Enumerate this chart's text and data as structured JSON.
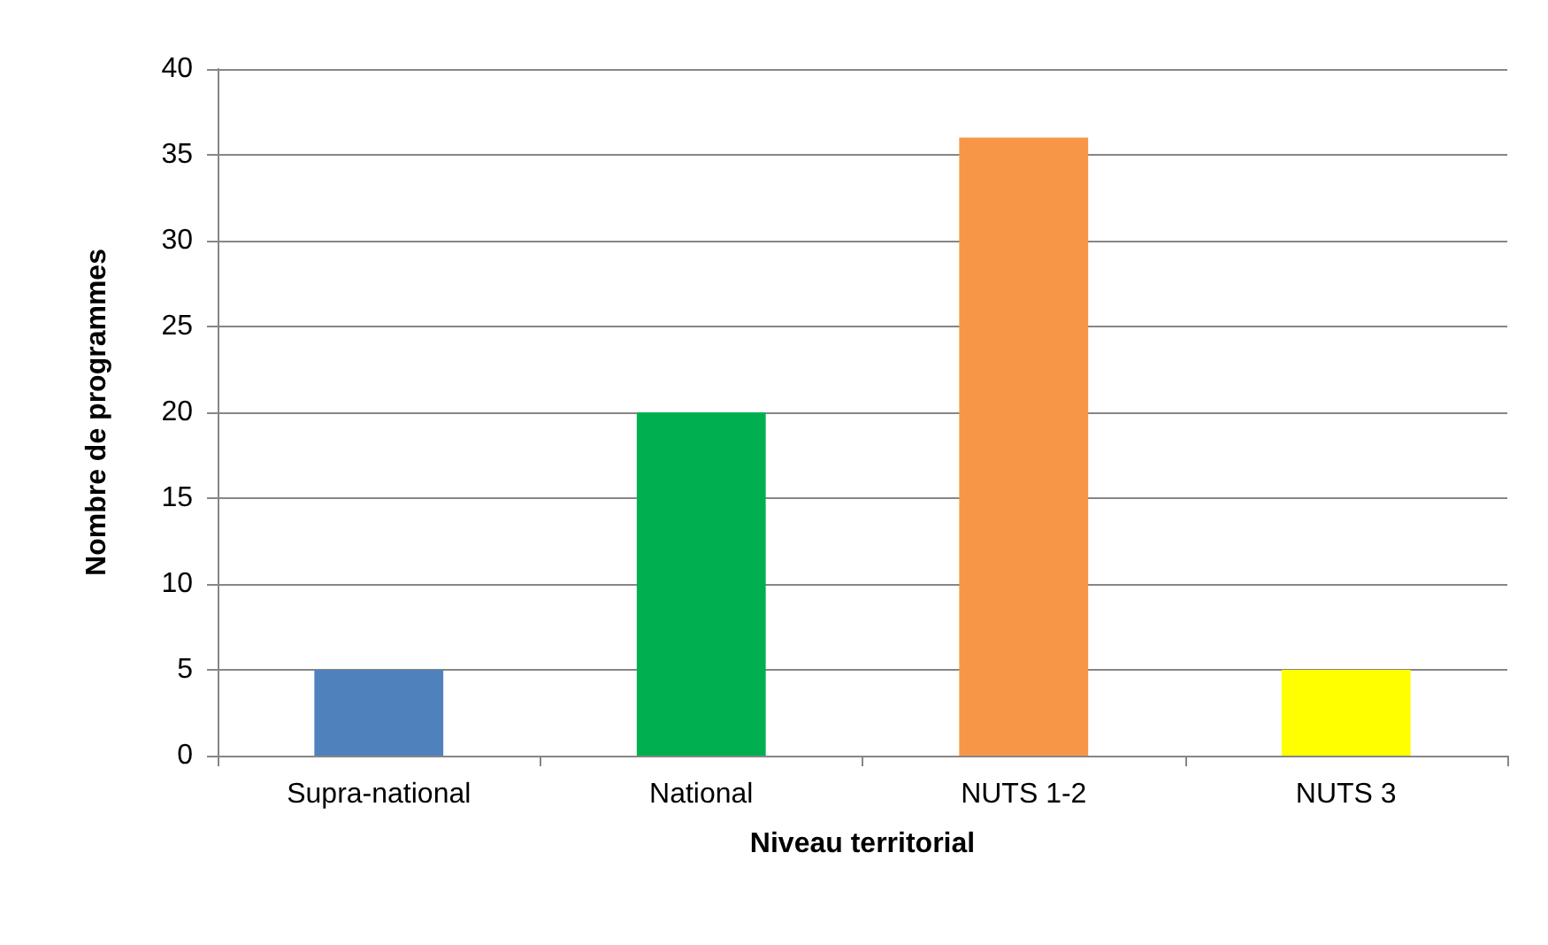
{
  "chart_data": {
    "type": "bar",
    "xlabel": "Niveau territorial",
    "ylabel": "Nombre de programmes",
    "categories": [
      "Supra-national",
      "National",
      "NUTS 1-2",
      "NUTS 3"
    ],
    "values": [
      5,
      20,
      36,
      5
    ],
    "colors": [
      "#4f81bd",
      "#00b050",
      "#f79646",
      "#ffff00"
    ],
    "ylim": [
      0,
      40
    ],
    "yticks": [
      0,
      5,
      10,
      15,
      20,
      25,
      30,
      35,
      40
    ],
    "grid": "y"
  }
}
